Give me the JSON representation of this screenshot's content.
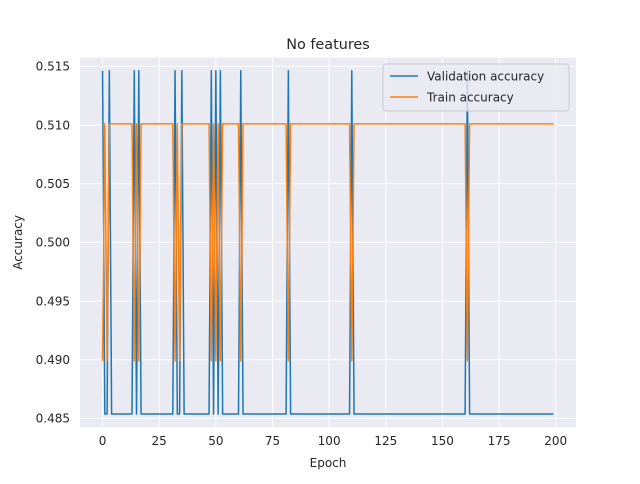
{
  "chart_data": {
    "type": "line",
    "title": "No features",
    "xlabel": "Epoch",
    "ylabel": "Accuracy",
    "xlim": [
      -9.95,
      208.95
    ],
    "ylim": [
      0.48425,
      0.51575
    ],
    "x_ticks": [
      0,
      25,
      50,
      75,
      100,
      125,
      150,
      175,
      200
    ],
    "y_ticks": [
      0.485,
      0.49,
      0.495,
      0.5,
      0.505,
      0.51,
      0.515
    ],
    "x_tick_labels": [
      "0",
      "25",
      "50",
      "75",
      "100",
      "125",
      "150",
      "175",
      "200"
    ],
    "y_tick_labels": [
      "0.485",
      "0.490",
      "0.495",
      "0.500",
      "0.505",
      "0.510",
      "0.515"
    ],
    "grid": true,
    "legend_position": "top-right",
    "base_value": {
      "validation": 0.48537,
      "train": 0.5101
    },
    "series": [
      {
        "name": "Validation accuracy",
        "color": "#1f77b4",
        "values_description": "",
        "points": [
          [
            0,
            0.51463
          ],
          [
            1,
            0.48537
          ],
          [
            2,
            0.48537
          ],
          [
            3,
            0.51463
          ],
          [
            4,
            0.48537
          ],
          [
            13,
            0.48537
          ],
          [
            14,
            0.51463
          ],
          [
            15,
            0.48537
          ],
          [
            16,
            0.51463
          ],
          [
            17,
            0.48537
          ],
          [
            31,
            0.48537
          ],
          [
            32,
            0.51463
          ],
          [
            33,
            0.48537
          ],
          [
            34,
            0.48537
          ],
          [
            35,
            0.51463
          ],
          [
            36,
            0.48537
          ],
          [
            47,
            0.48537
          ],
          [
            48,
            0.51463
          ],
          [
            49,
            0.48537
          ],
          [
            50,
            0.51463
          ],
          [
            51,
            0.48537
          ],
          [
            52,
            0.51463
          ],
          [
            53,
            0.48537
          ],
          [
            60,
            0.48537
          ],
          [
            61,
            0.51463
          ],
          [
            62,
            0.48537
          ],
          [
            81,
            0.48537
          ],
          [
            82,
            0.51463
          ],
          [
            83,
            0.48537
          ],
          [
            109,
            0.48537
          ],
          [
            110,
            0.51463
          ],
          [
            111,
            0.48537
          ],
          [
            160,
            0.48537
          ],
          [
            161,
            0.51463
          ],
          [
            162,
            0.48537
          ],
          [
            199,
            0.48537
          ]
        ]
      },
      {
        "name": "Train accuracy",
        "color": "#ff7f0e",
        "points": [
          [
            0,
            0.4899
          ],
          [
            1,
            0.5101
          ],
          [
            2,
            0.4899
          ],
          [
            3,
            0.5101
          ],
          [
            13,
            0.5101
          ],
          [
            14,
            0.4899
          ],
          [
            15,
            0.5101
          ],
          [
            16,
            0.4899
          ],
          [
            17,
            0.5101
          ],
          [
            31,
            0.5101
          ],
          [
            32,
            0.4899
          ],
          [
            33,
            0.5101
          ],
          [
            34,
            0.4899
          ],
          [
            35,
            0.5101
          ],
          [
            47,
            0.5101
          ],
          [
            48,
            0.4899
          ],
          [
            49,
            0.5101
          ],
          [
            50,
            0.4899
          ],
          [
            51,
            0.5101
          ],
          [
            52,
            0.4899
          ],
          [
            53,
            0.5101
          ],
          [
            60,
            0.5101
          ],
          [
            61,
            0.4899
          ],
          [
            62,
            0.5101
          ],
          [
            81,
            0.5101
          ],
          [
            82,
            0.4899
          ],
          [
            83,
            0.5101
          ],
          [
            109,
            0.5101
          ],
          [
            110,
            0.4899
          ],
          [
            111,
            0.5101
          ],
          [
            160,
            0.5101
          ],
          [
            161,
            0.4899
          ],
          [
            162,
            0.5101
          ],
          [
            199,
            0.5101
          ]
        ]
      }
    ]
  }
}
